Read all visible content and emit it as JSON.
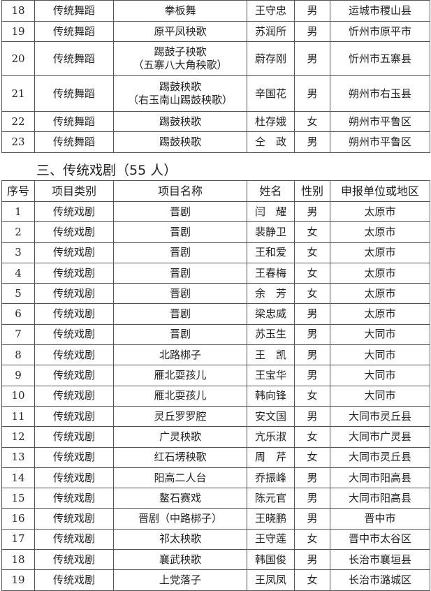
{
  "table1": {
    "rows": [
      {
        "no": "18",
        "category": "传统舞蹈",
        "project": "拳板舞",
        "project2": "",
        "name": "王守忠",
        "gender": "男",
        "region": "运城市稷山县"
      },
      {
        "no": "19",
        "category": "传统舞蹈",
        "project": "原平凤秧歌",
        "project2": "",
        "name": "苏润所",
        "gender": "男",
        "region": "忻州市原平市"
      },
      {
        "no": "20",
        "category": "传统舞蹈",
        "project": "踢鼓子秧歌",
        "project2": "（五寨八大角秧歌）",
        "name": "蔚存刚",
        "gender": "男",
        "region": "忻州市五寨县"
      },
      {
        "no": "21",
        "category": "传统舞蹈",
        "project": "踢鼓秧歌",
        "project2": "（右玉南山踢鼓秧歌）",
        "name": "辛国花",
        "gender": "男",
        "region": "朔州市右玉县"
      },
      {
        "no": "22",
        "category": "传统舞蹈",
        "project": "踢鼓秧歌",
        "project2": "",
        "name": "杜存娥",
        "gender": "女",
        "region": "朔州市平鲁区"
      },
      {
        "no": "23",
        "category": "传统舞蹈",
        "project": "踢鼓秧歌",
        "project2": "",
        "name": "仝　政",
        "gender": "男",
        "region": "朔州市平鲁区"
      }
    ]
  },
  "section_heading": "三、传统戏剧（55 人）",
  "table2": {
    "headers": [
      "序号",
      "项目类别",
      "项目名称",
      "姓名",
      "性别",
      "申报单位或地区"
    ],
    "rows": [
      [
        "1",
        "传统戏剧",
        "晋剧",
        "闫　耀",
        "男",
        "太原市"
      ],
      [
        "2",
        "传统戏剧",
        "晋剧",
        "裴静卫",
        "女",
        "太原市"
      ],
      [
        "3",
        "传统戏剧",
        "晋剧",
        "王和爱",
        "女",
        "太原市"
      ],
      [
        "4",
        "传统戏剧",
        "晋剧",
        "王春梅",
        "女",
        "太原市"
      ],
      [
        "5",
        "传统戏剧",
        "晋剧",
        "余　芳",
        "女",
        "太原市"
      ],
      [
        "6",
        "传统戏剧",
        "晋剧",
        "梁忠威",
        "男",
        "太原市"
      ],
      [
        "7",
        "传统戏剧",
        "晋剧",
        "苏玉生",
        "男",
        "大同市"
      ],
      [
        "8",
        "传统戏剧",
        "北路梆子",
        "王　凯",
        "男",
        "大同市"
      ],
      [
        "9",
        "传统戏剧",
        "雁北耍孩儿",
        "王宝华",
        "男",
        "大同市"
      ],
      [
        "10",
        "传统戏剧",
        "雁北耍孩儿",
        "韩向锋",
        "女",
        "大同市"
      ],
      [
        "11",
        "传统戏剧",
        "灵丘罗罗腔",
        "安文国",
        "男",
        "大同市灵丘县"
      ],
      [
        "12",
        "传统戏剧",
        "广灵秧歌",
        "亢乐淑",
        "女",
        "大同市广灵县"
      ],
      [
        "13",
        "传统戏剧",
        "红石塄秧歌",
        "周　芹",
        "女",
        "大同市灵丘县"
      ],
      [
        "14",
        "传统戏剧",
        "阳高二人台",
        "乔振峰",
        "男",
        "大同市阳高县"
      ],
      [
        "15",
        "传统戏剧",
        "鳌石赛戏",
        "陈元官",
        "男",
        "大同市阳高县"
      ],
      [
        "16",
        "传统戏剧",
        "晋剧（中路梆子）",
        "王晓鹏",
        "男",
        "晋中市"
      ],
      [
        "17",
        "传统戏剧",
        "祁太秧歌",
        "王守莲",
        "女",
        "晋中市太谷区"
      ],
      [
        "18",
        "传统戏剧",
        "襄武秧歌",
        "韩国俊",
        "男",
        "长治市襄垣县"
      ],
      [
        "19",
        "传统戏剧",
        "上党落子",
        "王凤凤",
        "女",
        "长治市潞城区"
      ]
    ]
  }
}
